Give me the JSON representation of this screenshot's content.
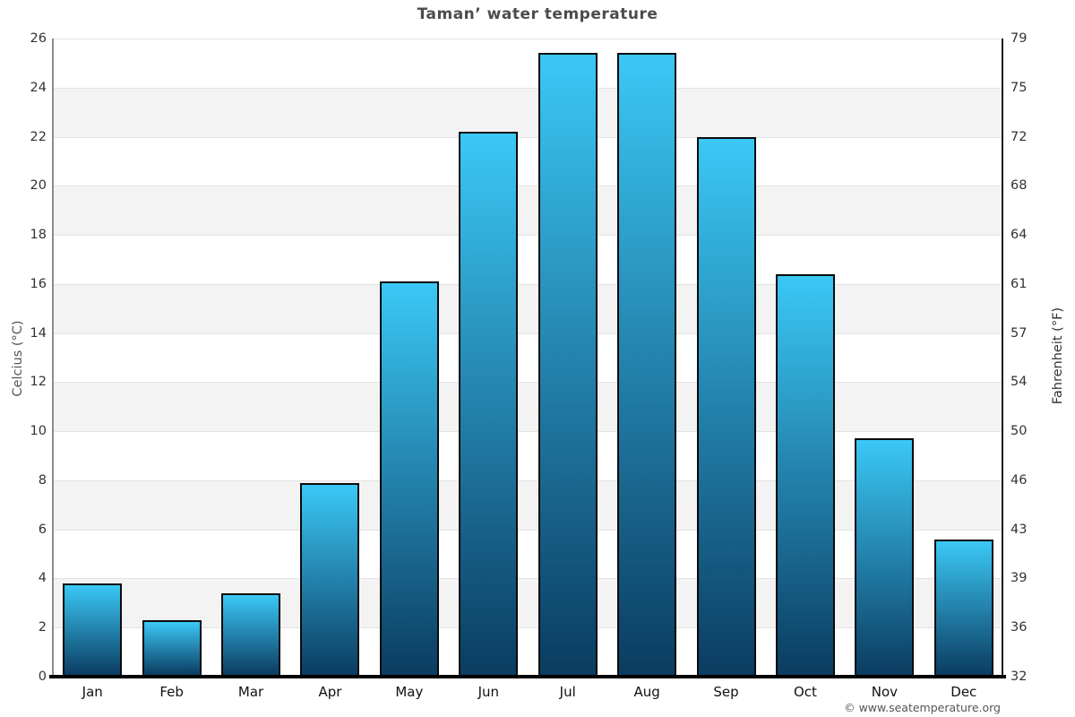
{
  "chart_data": {
    "type": "bar",
    "title": "Taman’ water temperature",
    "categories": [
      "Jan",
      "Feb",
      "Mar",
      "Apr",
      "May",
      "Jun",
      "Jul",
      "Aug",
      "Sep",
      "Oct",
      "Nov",
      "Dec"
    ],
    "values": [
      3.8,
      2.3,
      3.4,
      7.9,
      16.1,
      22.2,
      25.4,
      25.4,
      22.0,
      16.4,
      9.7,
      5.6
    ],
    "ylabel_left": "Celcius (°C)",
    "ylabel_right": "Fahrenheit (°F)",
    "y_left_ticks": [
      0,
      2,
      4,
      6,
      8,
      10,
      12,
      14,
      16,
      18,
      20,
      22,
      24,
      26
    ],
    "y_right_ticks": [
      32,
      36,
      39,
      43,
      46,
      50,
      54,
      57,
      61,
      64,
      68,
      72,
      75,
      79
    ],
    "ylim": [
      0,
      26
    ],
    "grid": true,
    "legend": "none",
    "bar_color_top": "#3bc8f6",
    "bar_color_bottom": "#0b3c61",
    "bar_border_color": "#0a0a0a",
    "band_color": "#f3f3f3",
    "footer": "© www.seatemperature.org"
  }
}
